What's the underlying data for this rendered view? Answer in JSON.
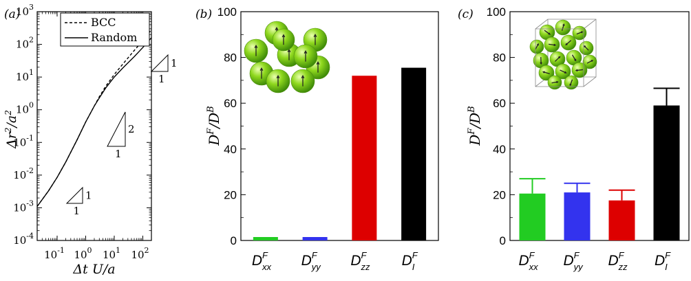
{
  "chart_data": [
    {
      "panel": "(a)",
      "type": "line",
      "xlabel": "Δt U/a",
      "ylabel": "Δr²/a²",
      "x_scale": "log",
      "y_scale": "log",
      "xlim": [
        0.02,
        200
      ],
      "ylim": [
        0.0001,
        1000
      ],
      "x_tick_exponents": [
        -1,
        0,
        1,
        2
      ],
      "y_tick_exponents": [
        -4,
        -3,
        -2,
        -1,
        0,
        1,
        2,
        3
      ],
      "legend": {
        "placement": "top-right",
        "entries": [
          {
            "name": "BCC",
            "style": "dashed"
          },
          {
            "name": "Random",
            "style": "solid"
          }
        ]
      },
      "series": [
        {
          "name": "BCC",
          "x": [
            0.02,
            0.05,
            0.1,
            0.2,
            0.5,
            1,
            2,
            3,
            5,
            10,
            20,
            50,
            100,
            200
          ],
          "y": [
            0.0011,
            0.0033,
            0.0085,
            0.025,
            0.12,
            0.42,
            1.3,
            2.5,
            5.2,
            12,
            25,
            65,
            130,
            280
          ]
        },
        {
          "name": "Random",
          "x": [
            0.02,
            0.05,
            0.1,
            0.2,
            0.5,
            1,
            2,
            3,
            5,
            10,
            20,
            50,
            100,
            200
          ],
          "y": [
            0.0011,
            0.0033,
            0.0085,
            0.025,
            0.12,
            0.42,
            1.3,
            2.3,
            4.6,
            10,
            19,
            42,
            80,
            160
          ]
        }
      ],
      "slope_triangles": [
        {
          "label": "1",
          "slope": 1
        },
        {
          "label": "2",
          "slope": 2
        },
        {
          "label": "1",
          "slope": 1
        }
      ]
    },
    {
      "panel": "(b)",
      "type": "bar",
      "ylabel": "D^F/D^B",
      "ylim": [
        0,
        100
      ],
      "y_ticks": [
        0,
        20,
        40,
        60,
        80,
        100
      ],
      "categories": [
        "xx",
        "yy",
        "zz",
        "I"
      ],
      "values": [
        1.5,
        1.5,
        72,
        75.5
      ],
      "colors": [
        "#22cc22",
        "#3333ee",
        "#dd0000",
        "#000000"
      ],
      "inset": "BCC sphere cluster"
    },
    {
      "panel": "(c)",
      "type": "bar",
      "ylabel": "D^F/D^B",
      "ylim": [
        0,
        100
      ],
      "y_ticks": [
        0,
        20,
        40,
        60,
        80,
        100
      ],
      "categories": [
        "xx",
        "yy",
        "zz",
        "I"
      ],
      "values": [
        20.5,
        21,
        17.5,
        59
      ],
      "errors": [
        6.5,
        4,
        4.5,
        7.5
      ],
      "colors": [
        "#22cc22",
        "#3333ee",
        "#dd0000",
        "#000000"
      ],
      "inset": "Random sphere suspension"
    }
  ],
  "labels": {
    "panel_a": "(a)",
    "panel_b": "(b)",
    "panel_c": "(c)",
    "base": "10",
    "bar_symbol": "D",
    "bar_super": "F",
    "ylabel_main": "D",
    "ylabel_sup1": "F",
    "ylabel_slash": "/D",
    "ylabel_sup2": "B",
    "a_ylabel_pre": "Δr",
    "a_ylabel_sup": "2",
    "a_ylabel_post": "/a",
    "a_ylabel_sup2": "2",
    "a_xlabel": "Δt U/a",
    "tri1": "1",
    "tri2": "1",
    "tri3": "2",
    "tri4": "1",
    "tri5": "1",
    "tri6": "1"
  }
}
